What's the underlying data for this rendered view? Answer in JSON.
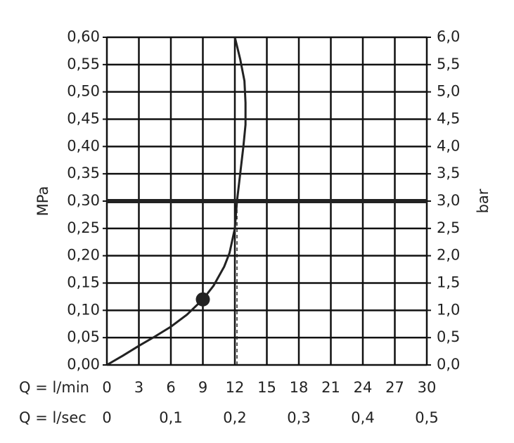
{
  "chart_data": {
    "type": "line",
    "xlabel": "Q = l/min",
    "x2label": "Q = l/sec",
    "ylabel": "MPa",
    "y2label": "bar",
    "xlim": [
      0,
      30
    ],
    "xticks": [
      0,
      3,
      6,
      9,
      12,
      15,
      18,
      21,
      24,
      27,
      30
    ],
    "x2lim": [
      0,
      0.5
    ],
    "x2ticks": [
      0,
      {
        "value": 0.1,
        "label": "0,1"
      },
      {
        "value": 0.2,
        "label": "0,2"
      },
      {
        "value": 0.3,
        "label": "0,3"
      },
      {
        "value": 0.4,
        "label": "0,4"
      },
      {
        "value": 0.5,
        "label": "0,5"
      }
    ],
    "ylim": [
      0,
      0.6
    ],
    "yticks": [
      {
        "value": 0,
        "label": "0,00"
      },
      {
        "value": 0.05,
        "label": "0,05"
      },
      {
        "value": 0.1,
        "label": "0,10"
      },
      {
        "value": 0.15,
        "label": "0,15"
      },
      {
        "value": 0.2,
        "label": "0,20"
      },
      {
        "value": 0.25,
        "label": "0,25"
      },
      {
        "value": 0.3,
        "label": "0,30"
      },
      {
        "value": 0.35,
        "label": "0,35"
      },
      {
        "value": 0.4,
        "label": "0,40"
      },
      {
        "value": 0.45,
        "label": "0,45"
      },
      {
        "value": 0.5,
        "label": "0,50"
      },
      {
        "value": 0.55,
        "label": "0,55"
      },
      {
        "value": 0.6,
        "label": "0,60"
      }
    ],
    "y2lim": [
      0,
      6
    ],
    "y2ticks": [
      {
        "value": 0,
        "label": "0,0"
      },
      {
        "value": 0.5,
        "label": "0,5"
      },
      {
        "value": 1,
        "label": "1,0"
      },
      {
        "value": 1.5,
        "label": "1,5"
      },
      {
        "value": 2,
        "label": "2,0"
      },
      {
        "value": 2.5,
        "label": "2,5"
      },
      {
        "value": 3,
        "label": "3,0"
      },
      {
        "value": 3.5,
        "label": "3,5"
      },
      {
        "value": 4,
        "label": "4,0"
      },
      {
        "value": 4.5,
        "label": "4,5"
      },
      {
        "value": 5,
        "label": "5,0"
      },
      {
        "value": 5.5,
        "label": "5,5"
      },
      {
        "value": 6,
        "label": "6,0"
      }
    ],
    "grid": true,
    "series": [
      {
        "color": "#222222",
        "x": [
          0,
          1.5,
          3,
          4.5,
          6,
          7.5,
          9,
          10,
          11,
          11.5,
          12,
          12.2,
          12.5,
          12.8,
          13,
          13,
          12.9,
          12.5,
          12
        ],
        "values": [
          0,
          0.017,
          0.035,
          0.052,
          0.07,
          0.092,
          0.12,
          0.145,
          0.18,
          0.205,
          0.25,
          0.3,
          0.35,
          0.4,
          0.44,
          0.48,
          0.52,
          0.56,
          0.6
        ]
      }
    ],
    "marker": {
      "x": 9,
      "y": 0.12
    },
    "reference_y": 0.3,
    "dropline_x": 12.2
  }
}
